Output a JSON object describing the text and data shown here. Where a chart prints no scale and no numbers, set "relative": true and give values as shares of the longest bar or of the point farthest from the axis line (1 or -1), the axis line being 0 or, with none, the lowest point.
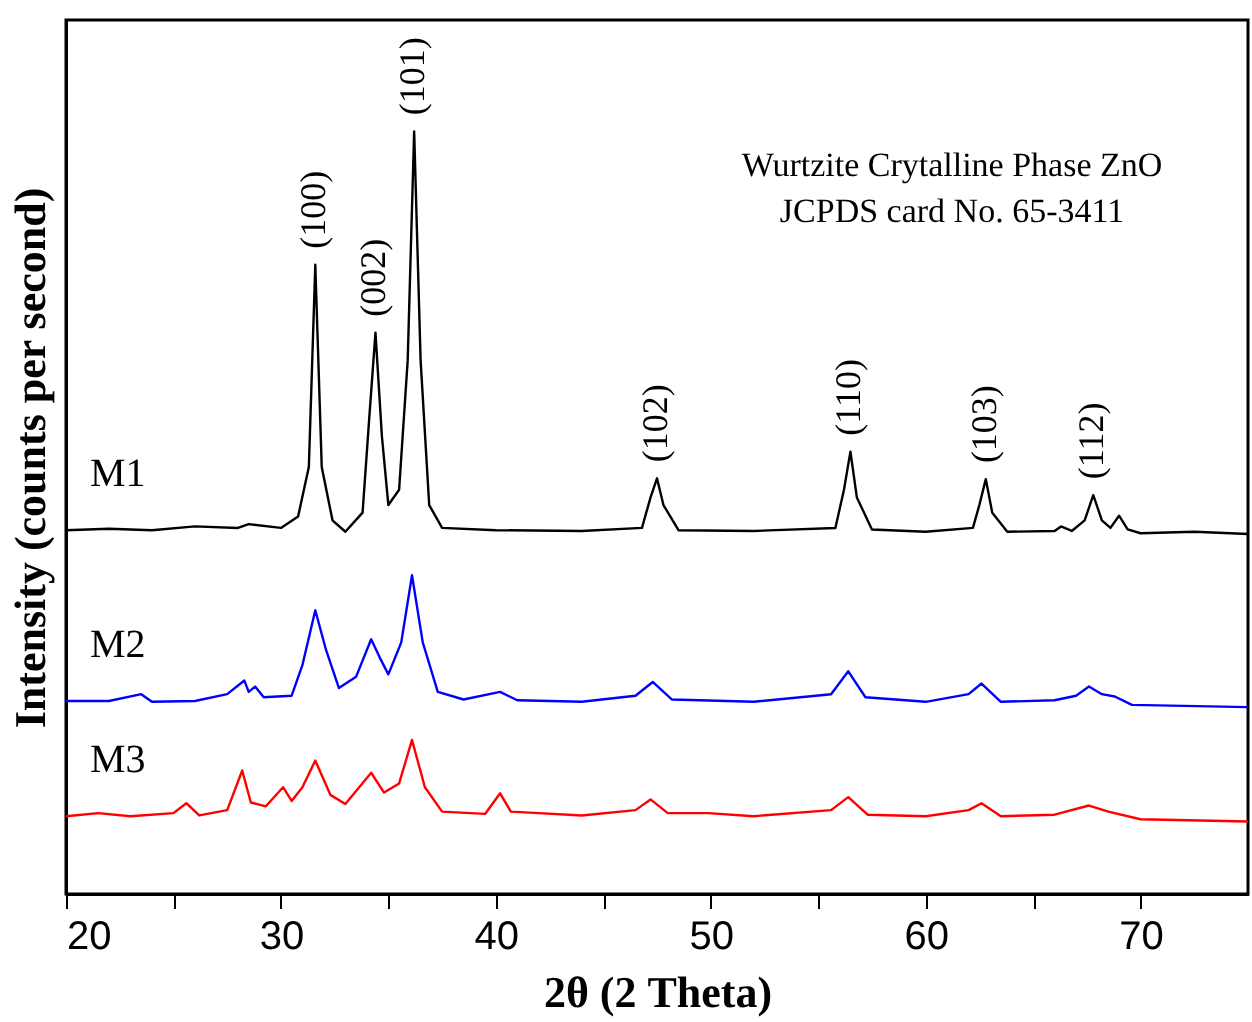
{
  "chart_data": {
    "type": "line",
    "relative": true,
    "xlabel": "2θ (2 Theta)",
    "ylabel": "Intensity (counts per second)",
    "xlim": [
      20,
      75
    ],
    "xticks": [
      20,
      {
        "value": 25,
        "label": null
      },
      30,
      {
        "value": 35,
        "label": null
      },
      40,
      {
        "value": 45,
        "label": null
      },
      50,
      {
        "value": 55,
        "label": null
      },
      60,
      {
        "value": 65,
        "label": null
      },
      70
    ],
    "tick_labels": "x",
    "grid": false,
    "legend": false,
    "marker": "none",
    "line_style": "solid",
    "series": [
      {
        "name": "M1",
        "color": "#000000",
        "x": [
          20.0,
          22,
          24,
          26,
          28,
          28.5,
          30,
          30.8,
          31.3,
          31.6,
          31.9,
          32.4,
          33.0,
          33.8,
          34.1,
          34.4,
          34.7,
          35.0,
          35.5,
          35.9,
          36.2,
          36.5,
          36.9,
          37.5,
          40,
          44,
          46.8,
          47.2,
          47.5,
          47.8,
          48.5,
          52,
          55.8,
          56.2,
          56.5,
          56.8,
          57.5,
          60,
          62.2,
          62.5,
          62.8,
          63.1,
          63.8,
          66,
          66.3,
          66.8,
          67.4,
          67.8,
          68.2,
          68.6,
          69.0,
          69.4,
          70,
          72.5,
          75
        ],
        "values": [
          0.477,
          0.479,
          0.477,
          0.482,
          0.48,
          0.485,
          0.48,
          0.495,
          0.56,
          0.825,
          0.56,
          0.49,
          0.475,
          0.5,
          0.62,
          0.736,
          0.6,
          0.51,
          0.53,
          0.7,
          1.0,
          0.7,
          0.51,
          0.48,
          0.477,
          0.476,
          0.48,
          0.52,
          0.545,
          0.51,
          0.477,
          0.476,
          0.48,
          0.53,
          0.58,
          0.52,
          0.478,
          0.475,
          0.48,
          0.51,
          0.544,
          0.5,
          0.475,
          0.476,
          0.482,
          0.476,
          0.49,
          0.523,
          0.49,
          0.48,
          0.496,
          0.478,
          0.473,
          0.475,
          0.472
        ]
      },
      {
        "name": "M2",
        "color": "#0000ff",
        "x": [
          20,
          22,
          23.5,
          24,
          26,
          27.5,
          28.3,
          28.5,
          28.8,
          29.2,
          30.5,
          31.0,
          31.6,
          32.1,
          32.7,
          33.5,
          34.2,
          34.6,
          35.0,
          35.6,
          36.1,
          36.6,
          37.3,
          38.5,
          40.2,
          41,
          44,
          46.5,
          47.3,
          48.2,
          52,
          55.6,
          56.4,
          57.2,
          60,
          62,
          62.6,
          63.5,
          66,
          67.0,
          67.6,
          68.2,
          68.8,
          69.6,
          75
        ],
        "values": [
          0.253,
          0.253,
          0.262,
          0.252,
          0.253,
          0.262,
          0.28,
          0.265,
          0.272,
          0.258,
          0.26,
          0.3,
          0.372,
          0.32,
          0.27,
          0.285,
          0.334,
          0.31,
          0.288,
          0.33,
          0.418,
          0.33,
          0.265,
          0.255,
          0.265,
          0.254,
          0.252,
          0.26,
          0.278,
          0.255,
          0.252,
          0.262,
          0.292,
          0.258,
          0.252,
          0.262,
          0.276,
          0.252,
          0.254,
          0.26,
          0.272,
          0.262,
          0.259,
          0.248,
          0.245
        ]
      },
      {
        "name": "M3",
        "color": "#ff0000",
        "x": [
          20,
          21.5,
          23,
          25,
          25.6,
          26.2,
          27.5,
          28.2,
          28.6,
          29.3,
          30.1,
          30.5,
          31.0,
          31.6,
          32.3,
          33.0,
          34.2,
          34.8,
          35.5,
          36.1,
          36.7,
          37.5,
          39.5,
          40.2,
          40.7,
          42,
          44,
          46.5,
          47.2,
          48,
          49.9,
          52,
          55.6,
          56.4,
          57.3,
          60,
          62,
          62.6,
          63.5,
          66,
          67.6,
          68.5,
          70,
          75
        ],
        "values": [
          0.102,
          0.106,
          0.102,
          0.106,
          0.119,
          0.103,
          0.11,
          0.162,
          0.12,
          0.115,
          0.14,
          0.122,
          0.14,
          0.175,
          0.13,
          0.118,
          0.159,
          0.133,
          0.145,
          0.202,
          0.14,
          0.108,
          0.105,
          0.132,
          0.108,
          0.106,
          0.103,
          0.11,
          0.124,
          0.106,
          0.106,
          0.102,
          0.11,
          0.127,
          0.104,
          0.102,
          0.11,
          0.119,
          0.102,
          0.104,
          0.116,
          0.108,
          0.098,
          0.095
        ]
      }
    ],
    "annotations": [
      {
        "text": "(100)",
        "x": 31.6,
        "y": 0.825
      },
      {
        "text": "(002)",
        "x": 34.4,
        "y": 0.736
      },
      {
        "text": "(101)",
        "x": 36.2,
        "y": 1.0
      },
      {
        "text": "(102)",
        "x": 47.5,
        "y": 0.545
      },
      {
        "text": "(110)",
        "x": 56.5,
        "y": 0.58
      },
      {
        "text": "(103)",
        "x": 62.8,
        "y": 0.544
      },
      {
        "text": "(112)",
        "x": 67.8,
        "y": 0.523
      },
      "Wurtzite Crytalline Phase ZnO",
      "JCPDS card No. 65-3411"
    ]
  }
}
